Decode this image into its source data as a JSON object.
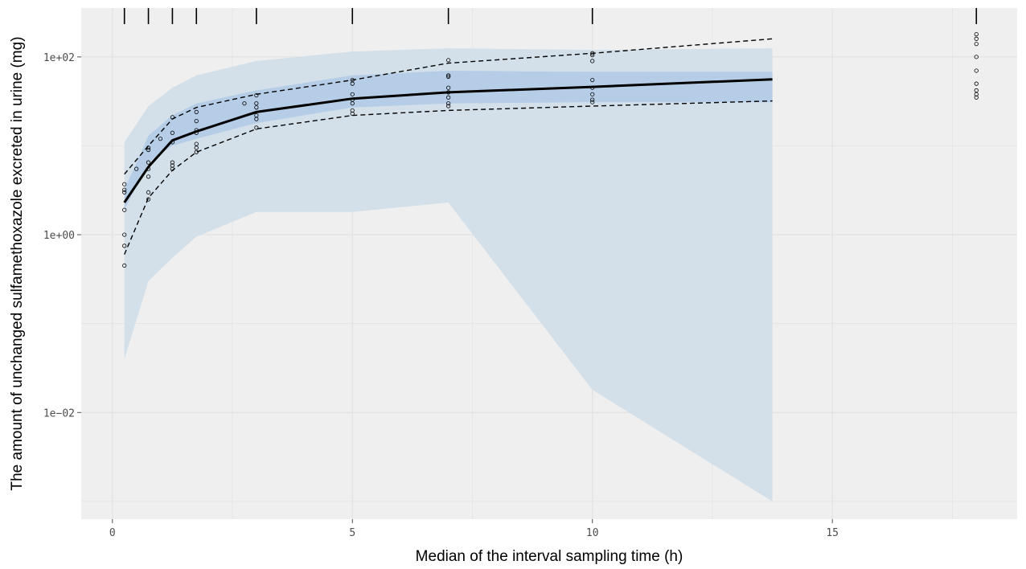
{
  "chart_data": {
    "type": "line",
    "xlabel": "Median of the interval sampling time  (h)",
    "ylabel": "The amount of unchanged sulfamethoxazole excreted in urine (mg)",
    "xlim": [
      -0.65,
      18.85
    ],
    "ylim_log10": [
      -3.2,
      2.55
    ],
    "y_scale": "log10",
    "grid": true,
    "x_ticks": [
      {
        "value": 0,
        "label": "0"
      },
      {
        "value": 5,
        "label": "5"
      },
      {
        "value": 10,
        "label": "10"
      },
      {
        "value": 15,
        "label": "15"
      }
    ],
    "y_ticks": [
      {
        "value": 0.01,
        "label": "1e−02"
      },
      {
        "value": 1,
        "label": "1e+00"
      },
      {
        "value": 100,
        "label": "1e+02"
      }
    ],
    "bin_markers_x": [
      0.25,
      0.75,
      1.25,
      1.75,
      3,
      5,
      7,
      10,
      18
    ],
    "bands": {
      "x": [
        0.25,
        0.75,
        1.25,
        1.75,
        3,
        5,
        7,
        10,
        13.75
      ],
      "pi_lower_ci": [
        0.04,
        0.3,
        0.55,
        0.95,
        1.8,
        1.8,
        2.3,
        0.018,
        0.001
      ],
      "pi_upper_ci": [
        11,
        28,
        45,
        62,
        90,
        115,
        125,
        120,
        125
      ],
      "median_ci_lower": [
        1.9,
        6.5,
        10,
        12,
        18,
        27,
        30,
        31,
        31
      ],
      "median_ci_upper": [
        3.2,
        13,
        22,
        30,
        42,
        62,
        70,
        68,
        68
      ]
    },
    "series": [
      {
        "name": "",
        "style": "solid",
        "x": [
          0.25,
          0.75,
          1.25,
          1.75,
          3,
          5,
          7,
          10,
          13.75
        ],
        "y": [
          2.3,
          5.8,
          11.5,
          14.5,
          24,
          34,
          40,
          46,
          56
        ]
      },
      {
        "name": "",
        "style": "dashed",
        "x": [
          0.25,
          0.75,
          1.25,
          1.75,
          3,
          5,
          7,
          10,
          13.75
        ],
        "y": [
          4.8,
          10,
          20,
          27,
          38,
          55,
          85,
          110,
          160
        ]
      },
      {
        "name": "",
        "style": "dashed",
        "x": [
          0.25,
          0.75,
          1.25,
          1.75,
          3,
          5,
          7,
          10,
          13.75
        ],
        "y": [
          0.6,
          2.6,
          5.3,
          8.5,
          15.5,
          22,
          25,
          28,
          32
        ]
      }
    ],
    "points": [
      [
        0.25,
        0.45
      ],
      [
        0.25,
        0.75
      ],
      [
        0.25,
        1.0
      ],
      [
        0.25,
        1.9
      ],
      [
        0.25,
        3.0
      ],
      [
        0.25,
        3.7
      ],
      [
        0.25,
        3.2
      ],
      [
        0.5,
        5.5
      ],
      [
        0.75,
        2.5
      ],
      [
        0.75,
        3.0
      ],
      [
        0.75,
        4.5
      ],
      [
        0.75,
        5.5
      ],
      [
        0.75,
        6.5
      ],
      [
        0.75,
        9.0
      ],
      [
        0.75,
        9.5
      ],
      [
        1.0,
        12
      ],
      [
        1.25,
        5.5
      ],
      [
        1.25,
        6.0
      ],
      [
        1.25,
        6.5
      ],
      [
        1.25,
        11
      ],
      [
        1.25,
        14
      ],
      [
        1.25,
        21
      ],
      [
        1.75,
        8.5
      ],
      [
        1.75,
        9.5
      ],
      [
        1.75,
        10.5
      ],
      [
        1.75,
        14
      ],
      [
        1.75,
        15
      ],
      [
        1.75,
        19
      ],
      [
        1.75,
        24
      ],
      [
        2.75,
        30
      ],
      [
        3,
        16
      ],
      [
        3,
        20
      ],
      [
        3,
        22
      ],
      [
        3,
        27
      ],
      [
        3,
        30
      ],
      [
        3,
        37
      ],
      [
        5,
        23
      ],
      [
        5,
        25
      ],
      [
        5,
        30
      ],
      [
        5,
        33
      ],
      [
        5,
        38
      ],
      [
        5,
        50
      ],
      [
        5,
        55
      ],
      [
        7,
        28
      ],
      [
        7,
        30
      ],
      [
        7,
        35
      ],
      [
        7,
        40
      ],
      [
        7,
        45
      ],
      [
        7,
        60
      ],
      [
        7,
        62
      ],
      [
        7,
        92
      ],
      [
        10,
        31
      ],
      [
        10,
        33
      ],
      [
        10,
        38
      ],
      [
        10,
        45
      ],
      [
        10,
        55
      ],
      [
        10,
        90
      ],
      [
        10,
        105
      ],
      [
        10,
        110
      ],
      [
        18,
        35
      ],
      [
        18,
        38
      ],
      [
        18,
        42
      ],
      [
        18,
        50
      ],
      [
        18,
        70
      ],
      [
        18,
        100
      ],
      [
        18,
        140
      ],
      [
        18,
        160
      ],
      [
        18,
        180
      ]
    ],
    "colors": {
      "panel": "#EFEFEF",
      "grid": "#E2E2E2",
      "outer_band": "#D3E0EA",
      "inner_band": "#B5CDE6",
      "line": "#000000"
    }
  }
}
